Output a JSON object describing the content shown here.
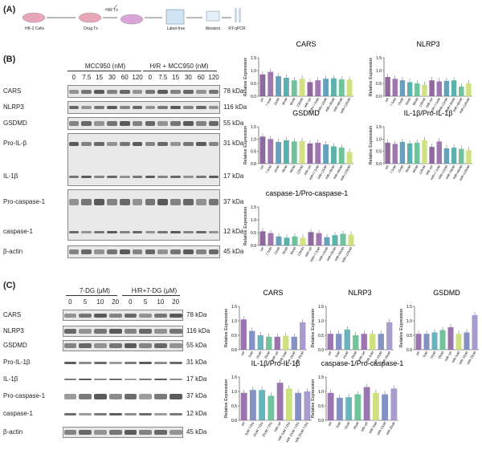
{
  "panel_labels": {
    "a": "(A)",
    "b": "(B)",
    "c": "(C)"
  },
  "workflow": {
    "steps": [
      "HK-2 Cells",
      "Drug Tx",
      "Label-free",
      "Western",
      "RT-qPCR"
    ],
    "hr_label": "H/R Tx"
  },
  "blot_b": {
    "group_headers": [
      "MCC950 (nM)",
      "H/R + MCC950 (nM)"
    ],
    "lanes": [
      "0",
      "7.5",
      "15",
      "30",
      "60",
      "120",
      "0",
      "7.5",
      "15",
      "30",
      "60",
      "120"
    ],
    "rows": [
      {
        "name": "CARS",
        "kda": "78 kDa"
      },
      {
        "name": "NLRP3",
        "kda": "116 kDa"
      },
      {
        "name": "GSDMD",
        "kda": "55 kDa"
      },
      {
        "name": "Pro-IL-β",
        "kda": "31 kDa"
      },
      {
        "name": "IL-1β",
        "kda": "17 kDa"
      },
      {
        "name": "Pro-caspase-1",
        "kda": "37 kDa"
      },
      {
        "name": "caspase-1",
        "kda": "12 kDa"
      },
      {
        "name": "β-actin",
        "kda": "45 kDa"
      }
    ]
  },
  "blot_c": {
    "group_headers": [
      "7-DG (μM)",
      "H/R+7-DG (μM)"
    ],
    "lanes": [
      "0",
      "5",
      "10",
      "20",
      "0",
      "5",
      "10",
      "20"
    ],
    "rows": [
      {
        "name": "CARS",
        "kda": "78 kDa"
      },
      {
        "name": "NLRP3",
        "kda": "116 kDa"
      },
      {
        "name": "GSDMD",
        "kda": "55 kDa"
      },
      {
        "name": "Pro-IL-1β",
        "kda": "31 kDa"
      },
      {
        "name": "IL-1β",
        "kda": "17 kDa"
      },
      {
        "name": "Pro-caspase-1",
        "kda": "37 kDa"
      },
      {
        "name": "caspase-1",
        "kda": "12 kDa"
      },
      {
        "name": "β-actin",
        "kda": "45 kDa"
      }
    ]
  },
  "chart_data": [
    {
      "type": "bar",
      "title": "CARS",
      "ylabel": "Relative Expression",
      "ylim": [
        0,
        1.5
      ],
      "yticks": [
        "0.0",
        "0.5",
        "1.0",
        "1.5"
      ],
      "categories": [
        "ctrl",
        "7.5nM",
        "15nM",
        "30nM",
        "60nM",
        "120nM",
        "H/R ctrl",
        "H/R+7.5nM",
        "H/R+15nM",
        "H/R+30nM",
        "H/R+60nM",
        "H/R+120nM"
      ],
      "values": [
        0.85,
        0.95,
        0.78,
        0.72,
        0.62,
        0.68,
        0.55,
        0.62,
        0.68,
        0.7,
        0.66,
        0.64
      ]
    },
    {
      "type": "bar",
      "title": "NLRP3",
      "ylabel": "Relative Expression",
      "ylim": [
        0,
        1.5
      ],
      "yticks": [
        "0.0",
        "0.5",
        "1.0",
        "1.5"
      ],
      "categories": [
        "ctrl",
        "7.5nM",
        "15nM",
        "30nM",
        "60nM",
        "120nM",
        "H/R ctrl",
        "H/R+7.5nM",
        "H/R+15nM",
        "H/R+30nM",
        "H/R+60nM",
        "H/R+120nM"
      ],
      "values": [
        0.75,
        0.68,
        0.62,
        0.55,
        0.5,
        0.45,
        0.62,
        0.58,
        0.6,
        0.62,
        0.38,
        0.5
      ]
    },
    {
      "type": "bar",
      "title": "GSDMD",
      "ylabel": "Relative Expression",
      "ylim": [
        0,
        1.5
      ],
      "yticks": [
        "0.0",
        "0.5",
        "1.0",
        "1.5"
      ],
      "categories": [
        "ctrl",
        "7.5nM",
        "15nM",
        "30nM",
        "60nM",
        "120nM",
        "H/R ctrl",
        "H/R+7.5nM",
        "H/R+15nM",
        "H/R+30nM",
        "H/R+60nM",
        "H/R+120nM"
      ],
      "values": [
        1.1,
        1.0,
        0.88,
        0.95,
        0.9,
        0.92,
        0.82,
        0.85,
        0.78,
        0.7,
        0.65,
        0.48
      ]
    },
    {
      "type": "bar",
      "title": "IL-1β/Pro-IL-1β",
      "ylabel": "Relative Expression",
      "ylim": [
        0,
        1.5
      ],
      "yticks": [
        "0.0",
        "0.5",
        "1.0",
        "1.5"
      ],
      "categories": [
        "ctrl",
        "7.5nM",
        "15nM",
        "30nM",
        "60nM",
        "120nM",
        "H/R ctrl",
        "H/R+7.5nM",
        "H/R+15nM",
        "H/R+30nM",
        "H/R+60nM",
        "H/R+120nM"
      ],
      "values": [
        0.85,
        0.8,
        0.88,
        0.82,
        0.85,
        0.95,
        0.68,
        0.9,
        0.62,
        0.65,
        0.6,
        0.55
      ]
    },
    {
      "type": "bar",
      "title": "caspase-1/Pro-caspase-1",
      "ylabel": "Relative Expression",
      "ylim": [
        0,
        1.5
      ],
      "yticks": [
        "0.0",
        "0.5",
        "1.0",
        "1.5"
      ],
      "categories": [
        "ctrl",
        "7.5nM",
        "15nM",
        "30nM",
        "60nM",
        "120nM",
        "H/R ctrl",
        "H/R+7.5nM",
        "H/R+15nM",
        "H/R+30nM",
        "H/R+60nM",
        "H/R+120nM"
      ],
      "values": [
        0.55,
        0.48,
        0.35,
        0.3,
        0.35,
        0.3,
        0.52,
        0.48,
        0.32,
        0.4,
        0.45,
        0.42
      ]
    },
    {
      "type": "bar",
      "title": "CARS",
      "ylabel": "Relative Expression",
      "ylim": [
        0,
        1.5
      ],
      "yticks": [
        "0.0",
        "0.5",
        "1.0",
        "1.5"
      ],
      "categories": [
        "ctrl",
        "5uM",
        "10uM",
        "20uM",
        "H/R ctrl",
        "H/R 5uM",
        "H/R 10uM",
        "H/R 20uM"
      ],
      "values": [
        1.05,
        0.65,
        0.5,
        0.45,
        0.45,
        0.48,
        0.45,
        0.95
      ]
    },
    {
      "type": "bar",
      "title": "NLRP3",
      "ylabel": "Relative Expression",
      "ylim": [
        0,
        1.5
      ],
      "yticks": [
        "0.0",
        "0.5",
        "1.0",
        "1.5"
      ],
      "categories": [
        "ctrl",
        "5uM",
        "10uM",
        "20uM",
        "H/R ctrl",
        "H/R 5uM",
        "H/R 10uM",
        "H/R 20uM"
      ],
      "values": [
        0.55,
        0.55,
        0.7,
        0.5,
        0.55,
        0.55,
        0.55,
        0.95
      ]
    },
    {
      "type": "bar",
      "title": "GSDMD",
      "ylabel": "Relative Expression",
      "ylim": [
        0,
        1.5
      ],
      "yticks": [
        "0.0",
        "0.5",
        "1.0",
        "1.5"
      ],
      "categories": [
        "ctrl",
        "5uM",
        "10uM",
        "20uM",
        "H/R ctrl",
        "H/R 5uM",
        "H/R 10uM",
        "H/R 20uM"
      ],
      "values": [
        0.55,
        0.55,
        0.6,
        0.68,
        0.78,
        0.55,
        0.6,
        1.2
      ]
    },
    {
      "type": "bar",
      "title": "IL-1β/Pro-IL-1β",
      "ylabel": "Relative Expression",
      "ylim": [
        0,
        1.5
      ],
      "yticks": [
        "0.0",
        "0.5",
        "1.0",
        "1.5"
      ],
      "categories": [
        "ctrl",
        "5uM 7-DG",
        "10uM 7-DG",
        "20uM 7-DG",
        "H/R ctrl",
        "H/R 5uM 7-DG",
        "H/R 10uM 7-DG",
        "H/R 20uM 7-DG"
      ],
      "values": [
        0.95,
        1.05,
        1.05,
        0.85,
        1.3,
        1.1,
        0.95,
        1.0
      ]
    },
    {
      "type": "bar",
      "title": "caspase-1/Pro-caspase-1",
      "ylabel": "Relative Expression",
      "ylim": [
        0,
        1.5
      ],
      "yticks": [
        "0.0",
        "0.5",
        "1.0",
        "1.5"
      ],
      "categories": [
        "ctrl",
        "5uM",
        "10uM",
        "20uM",
        "H/R ctrl",
        "H/R 5uM",
        "H/R 10uM",
        "H/R 20uM"
      ],
      "values": [
        0.95,
        0.78,
        0.8,
        0.9,
        1.15,
        0.95,
        0.9,
        1.1
      ]
    }
  ],
  "colors": {
    "bars12": [
      "#7a4e8e",
      "#8f5ea4",
      "#4c8fb0",
      "#3ea39d",
      "#55b88a",
      "#c9dc6a",
      "#7a4e8e",
      "#8f5ea4",
      "#4c8fb0",
      "#3ea39d",
      "#55b88a",
      "#c9dc6a"
    ],
    "bars8": [
      "#8a5da2",
      "#6f7fb8",
      "#4ea7b0",
      "#58b98a",
      "#8a5da2",
      "#c7da6b",
      "#6f7fb8",
      "#9a8ac6"
    ]
  }
}
